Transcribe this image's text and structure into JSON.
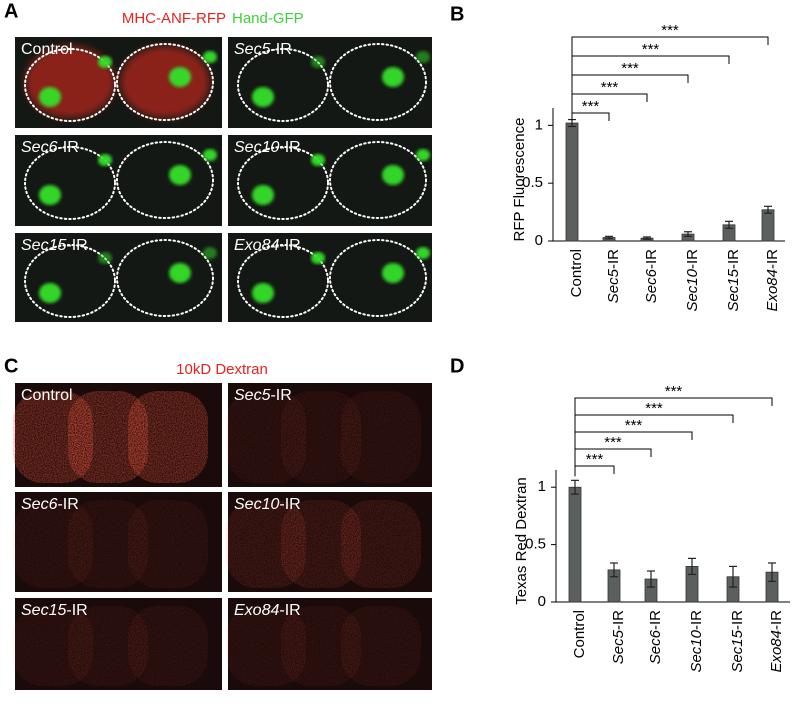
{
  "panels": [
    {
      "letter": "A",
      "title": [
        "MHC-ANF-RFP",
        "Hand-GFP"
      ],
      "images": [
        "Control",
        "Sec5-IR",
        "Sec6-IR",
        "Sec10-IR",
        "Sec15-IR",
        "Exo84-IR"
      ]
    },
    {
      "letter": "B"
    },
    {
      "letter": "C",
      "title": [
        "10kD Dextran"
      ],
      "images": [
        "Control",
        "Sec5-IR",
        "Sec6-IR",
        "Sec10-IR",
        "Sec15-IR",
        "Exo84-IR"
      ]
    },
    {
      "letter": "D"
    }
  ],
  "chart_data": [
    {
      "type": "bar",
      "ylabel": "RFP Fluorescence",
      "categories": [
        "Control",
        "Sec5-IR",
        "Sec6-IR",
        "Sec10-IR",
        "Sec15-IR",
        "Exo84-IR"
      ],
      "values": [
        1.02,
        0.03,
        0.025,
        0.06,
        0.14,
        0.27
      ],
      "errors": [
        0.03,
        0.01,
        0.01,
        0.02,
        0.03,
        0.03
      ],
      "significance": [
        null,
        "***",
        "***",
        "***",
        "***",
        "***"
      ],
      "color": "#5b605f",
      "ylim": [
        0,
        1.15
      ],
      "yticks": [
        0,
        0.5,
        1
      ]
    },
    {
      "type": "bar",
      "ylabel": "Texas Red Dextran",
      "categories": [
        "Control",
        "Sec5-IR",
        "Sec6-IR",
        "Sec10-IR",
        "Sec15-IR",
        "Exo84-IR"
      ],
      "values": [
        1.0,
        0.28,
        0.2,
        0.31,
        0.22,
        0.26
      ],
      "errors": [
        0.06,
        0.06,
        0.07,
        0.07,
        0.09,
        0.08
      ],
      "significance": [
        null,
        "***",
        "***",
        "***",
        "***",
        "***"
      ],
      "color": "#5b605f",
      "ylim": [
        0,
        1.15
      ],
      "yticks": [
        0,
        0.5,
        1
      ]
    }
  ]
}
